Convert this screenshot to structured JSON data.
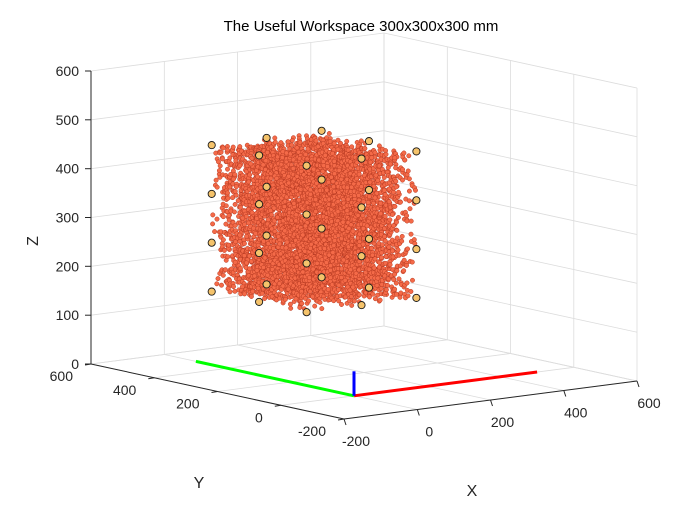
{
  "chart_data": {
    "type": "scatter",
    "projection": "3d",
    "title": "The Useful Workspace 300x300x300 mm",
    "xlabel": "X",
    "ylabel": "Y",
    "zlabel": "Z",
    "xlim": [
      -200,
      600
    ],
    "ylim": [
      -200,
      600
    ],
    "zlim": [
      0,
      600
    ],
    "xticks": [
      -200,
      0,
      200,
      400,
      600
    ],
    "yticks": [
      -200,
      0,
      200,
      400,
      600
    ],
    "zticks": [
      0,
      100,
      200,
      300,
      400,
      500,
      600
    ],
    "grid": true,
    "colors": {
      "cloud_fill": "#f46a48",
      "cloud_edge": "#b83a22",
      "marker_fill": "#f5c36b",
      "marker_edge": "#1a1a1a",
      "x_axis": "#ff0000",
      "y_axis": "#00ff00",
      "z_axis": "#0000ff",
      "grid": "#dcdcdc",
      "box": "#262626"
    },
    "cloud": {
      "x_range": [
        0,
        300
      ],
      "y_range": [
        150,
        450
      ],
      "z_range": [
        0,
        300
      ],
      "z_offset": 150,
      "approx_points": 6000
    },
    "corner_markers": {
      "x": [
        0,
        150,
        300
      ],
      "y": [
        150,
        300,
        450
      ],
      "z": [
        150,
        250,
        350,
        450
      ]
    },
    "frame_axes": {
      "origin": [
        0,
        0,
        0
      ],
      "x_end": [
        500,
        0,
        0
      ],
      "y_end": [
        0,
        500,
        0
      ],
      "z_end": [
        0,
        0,
        50
      ]
    }
  }
}
